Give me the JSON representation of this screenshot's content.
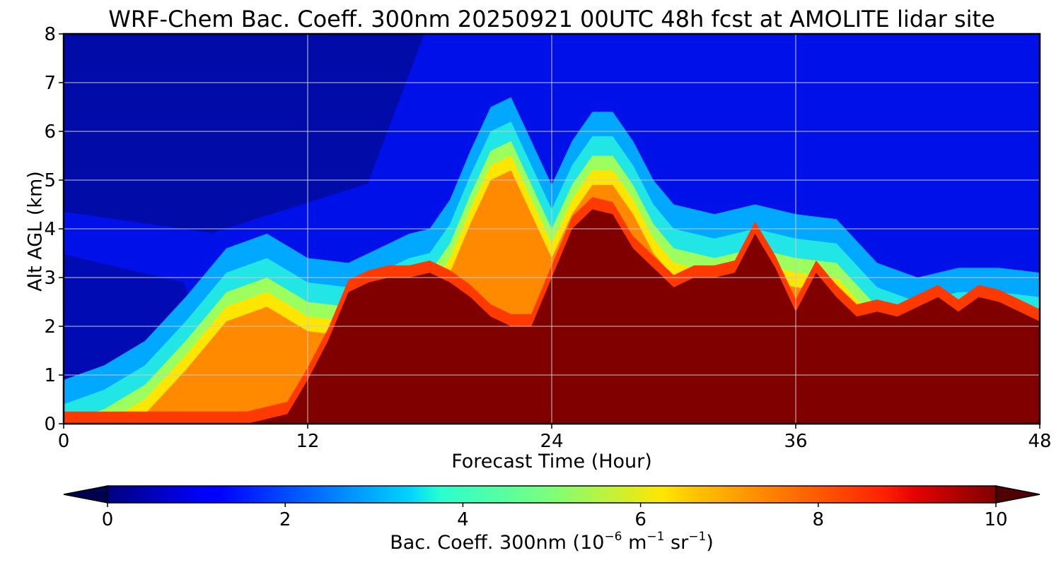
{
  "chart_data": {
    "type": "heatmap",
    "title": "WRF-Chem Bac. Coeff. 300nm  20250921 00UTC 48h fcst at AMOLITE lidar site",
    "xlabel": "Forecast Time (Hour)",
    "ylabel": "Alt AGL (km)",
    "xlim": [
      0,
      48
    ],
    "ylim": [
      0,
      8
    ],
    "x_ticks": [
      0,
      12,
      24,
      36,
      48
    ],
    "y_ticks": [
      0,
      1,
      2,
      3,
      4,
      5,
      6,
      7,
      8
    ],
    "grid": true,
    "colorbar": {
      "label_main": "Bac. Coeff. 300nm  (10",
      "exp1": "−6",
      "unit_m": " m",
      "exp2": "−1",
      "unit_sr": " sr",
      "exp3": "−1",
      "close": ")",
      "ticks": [
        0,
        2,
        4,
        6,
        8,
        10
      ],
      "range": [
        0,
        10
      ],
      "colormap": "jet",
      "extend": "both"
    },
    "saturated_layer_top_km": {
      "hours": [
        0,
        2,
        4,
        6,
        8,
        9,
        10,
        11,
        12,
        13,
        14,
        15,
        16,
        17,
        18,
        19,
        20,
        21,
        22,
        23,
        24,
        25,
        26,
        27,
        28,
        29,
        30,
        31,
        32,
        33,
        34,
        35,
        36,
        37,
        38,
        39,
        40,
        41,
        42,
        43,
        44,
        45,
        46,
        47,
        48
      ],
      "values": [
        0.0,
        0.0,
        0.0,
        0.0,
        0.0,
        0.0,
        0.1,
        0.2,
        0.9,
        1.7,
        2.7,
        2.9,
        3.0,
        3.0,
        3.1,
        2.9,
        2.6,
        2.2,
        2.0,
        2.0,
        3.0,
        4.0,
        4.4,
        4.3,
        3.6,
        3.2,
        2.8,
        3.0,
        3.0,
        3.1,
        3.9,
        3.2,
        2.3,
        3.1,
        2.6,
        2.2,
        2.3,
        2.2,
        2.4,
        2.6,
        2.3,
        2.6,
        2.5,
        2.3,
        2.1
      ]
    },
    "aerosol_plume_top_km": {
      "hours": [
        0,
        2,
        4,
        6,
        8,
        10,
        12,
        14,
        16,
        17,
        18,
        19,
        20,
        21,
        22,
        23,
        24,
        25,
        26,
        27,
        28,
        29,
        30,
        32,
        34,
        36,
        38,
        40,
        42,
        44,
        46,
        48
      ],
      "values": [
        0.9,
        1.2,
        1.7,
        2.6,
        3.6,
        3.9,
        3.4,
        3.3,
        3.7,
        3.9,
        4.0,
        4.6,
        5.6,
        6.5,
        6.7,
        5.8,
        4.9,
        5.8,
        6.4,
        6.4,
        5.8,
        5.0,
        4.5,
        4.3,
        4.5,
        4.3,
        4.2,
        3.3,
        3.0,
        3.2,
        3.2,
        3.1
      ]
    }
  }
}
